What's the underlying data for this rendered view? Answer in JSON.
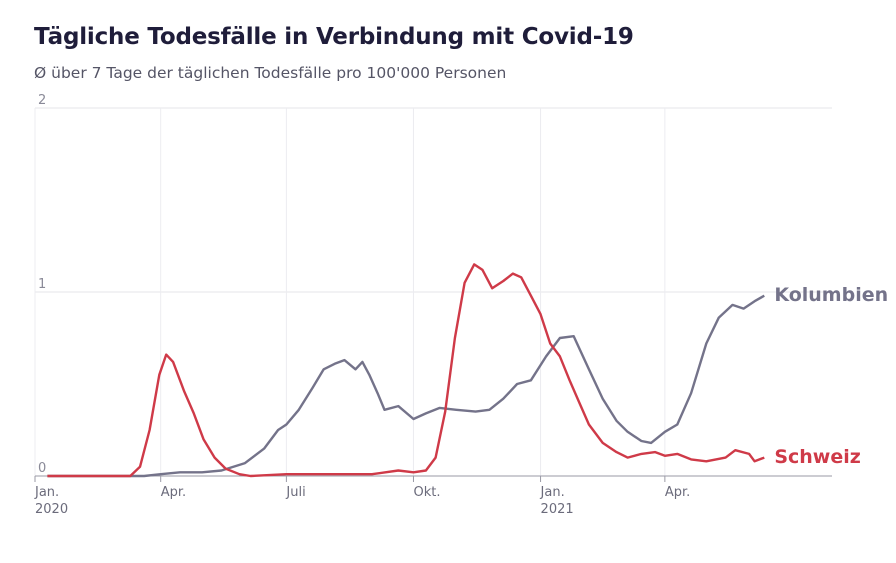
{
  "chart_data": {
    "type": "line",
    "title": "Tägliche Todesfälle in Verbindung mit Covid-19",
    "subtitle": "Ø über 7 Tage der täglichen Todesfälle pro 100'000 Personen",
    "ylim": [
      0,
      2
    ],
    "yticks": [
      {
        "value": 0,
        "label": "0"
      },
      {
        "value": 1,
        "label": "1"
      },
      {
        "value": 2,
        "label": "2"
      }
    ],
    "xlim": [
      "2020-01-01",
      "2021-07-31"
    ],
    "xticks": [
      {
        "date": "2020-01-01",
        "label": "Jan.",
        "sublabel": "2020"
      },
      {
        "date": "2020-04-01",
        "label": "Apr.",
        "sublabel": ""
      },
      {
        "date": "2020-07-01",
        "label": "Juli",
        "sublabel": ""
      },
      {
        "date": "2020-10-01",
        "label": "Okt.",
        "sublabel": ""
      },
      {
        "date": "2021-01-01",
        "label": "Jan.",
        "sublabel": "2021"
      },
      {
        "date": "2021-04-01",
        "label": "Apr.",
        "sublabel": ""
      }
    ],
    "grid": true,
    "series": [
      {
        "name": "Kolumbien",
        "color": "#74738a",
        "points": [
          [
            "2020-01-10",
            0
          ],
          [
            "2020-03-20",
            0
          ],
          [
            "2020-04-01",
            0.01
          ],
          [
            "2020-04-15",
            0.02
          ],
          [
            "2020-05-01",
            0.02
          ],
          [
            "2020-05-15",
            0.03
          ],
          [
            "2020-06-01",
            0.07
          ],
          [
            "2020-06-15",
            0.15
          ],
          [
            "2020-06-25",
            0.25
          ],
          [
            "2020-07-01",
            0.28
          ],
          [
            "2020-07-10",
            0.36
          ],
          [
            "2020-07-20",
            0.48
          ],
          [
            "2020-07-28",
            0.58
          ],
          [
            "2020-08-05",
            0.61
          ],
          [
            "2020-08-12",
            0.63
          ],
          [
            "2020-08-20",
            0.58
          ],
          [
            "2020-08-25",
            0.62
          ],
          [
            "2020-08-30",
            0.55
          ],
          [
            "2020-09-05",
            0.45
          ],
          [
            "2020-09-10",
            0.36
          ],
          [
            "2020-09-20",
            0.38
          ],
          [
            "2020-10-01",
            0.31
          ],
          [
            "2020-10-10",
            0.34
          ],
          [
            "2020-10-20",
            0.37
          ],
          [
            "2020-11-01",
            0.36
          ],
          [
            "2020-11-15",
            0.35
          ],
          [
            "2020-11-25",
            0.36
          ],
          [
            "2020-12-05",
            0.42
          ],
          [
            "2020-12-15",
            0.5
          ],
          [
            "2020-12-25",
            0.52
          ],
          [
            "2021-01-05",
            0.65
          ],
          [
            "2021-01-15",
            0.75
          ],
          [
            "2021-01-25",
            0.76
          ],
          [
            "2021-02-05",
            0.58
          ],
          [
            "2021-02-15",
            0.42
          ],
          [
            "2021-02-25",
            0.3
          ],
          [
            "2021-03-05",
            0.24
          ],
          [
            "2021-03-15",
            0.19
          ],
          [
            "2021-03-22",
            0.18
          ],
          [
            "2021-04-01",
            0.24
          ],
          [
            "2021-04-10",
            0.28
          ],
          [
            "2021-04-20",
            0.45
          ],
          [
            "2021-05-01",
            0.72
          ],
          [
            "2021-05-10",
            0.86
          ],
          [
            "2021-05-20",
            0.93
          ],
          [
            "2021-05-28",
            0.91
          ],
          [
            "2021-06-05",
            0.95
          ],
          [
            "2021-06-12",
            0.98
          ]
        ]
      },
      {
        "name": "Schweiz",
        "color": "#cf3a48",
        "points": [
          [
            "2020-01-10",
            0
          ],
          [
            "2020-03-10",
            0
          ],
          [
            "2020-03-17",
            0.05
          ],
          [
            "2020-03-24",
            0.25
          ],
          [
            "2020-03-31",
            0.55
          ],
          [
            "2020-04-05",
            0.66
          ],
          [
            "2020-04-10",
            0.62
          ],
          [
            "2020-04-18",
            0.46
          ],
          [
            "2020-04-25",
            0.34
          ],
          [
            "2020-05-02",
            0.2
          ],
          [
            "2020-05-10",
            0.1
          ],
          [
            "2020-05-18",
            0.04
          ],
          [
            "2020-05-28",
            0.01
          ],
          [
            "2020-06-05",
            0
          ],
          [
            "2020-07-01",
            0.01
          ],
          [
            "2020-08-01",
            0.01
          ],
          [
            "2020-09-01",
            0.01
          ],
          [
            "2020-09-20",
            0.03
          ],
          [
            "2020-10-01",
            0.02
          ],
          [
            "2020-10-10",
            0.03
          ],
          [
            "2020-10-17",
            0.1
          ],
          [
            "2020-10-24",
            0.35
          ],
          [
            "2020-10-31",
            0.75
          ],
          [
            "2020-11-07",
            1.05
          ],
          [
            "2020-11-14",
            1.15
          ],
          [
            "2020-11-20",
            1.12
          ],
          [
            "2020-11-27",
            1.02
          ],
          [
            "2020-12-05",
            1.06
          ],
          [
            "2020-12-12",
            1.1
          ],
          [
            "2020-12-18",
            1.08
          ],
          [
            "2020-12-25",
            0.98
          ],
          [
            "2021-01-01",
            0.88
          ],
          [
            "2021-01-08",
            0.72
          ],
          [
            "2021-01-15",
            0.65
          ],
          [
            "2021-01-22",
            0.52
          ],
          [
            "2021-01-29",
            0.4
          ],
          [
            "2021-02-05",
            0.28
          ],
          [
            "2021-02-15",
            0.18
          ],
          [
            "2021-02-25",
            0.13
          ],
          [
            "2021-03-05",
            0.1
          ],
          [
            "2021-03-15",
            0.12
          ],
          [
            "2021-03-25",
            0.13
          ],
          [
            "2021-04-01",
            0.11
          ],
          [
            "2021-04-10",
            0.12
          ],
          [
            "2021-04-20",
            0.09
          ],
          [
            "2021-05-01",
            0.08
          ],
          [
            "2021-05-15",
            0.1
          ],
          [
            "2021-05-22",
            0.14
          ],
          [
            "2021-06-01",
            0.12
          ],
          [
            "2021-06-05",
            0.08
          ],
          [
            "2021-06-12",
            0.1
          ]
        ]
      }
    ]
  }
}
